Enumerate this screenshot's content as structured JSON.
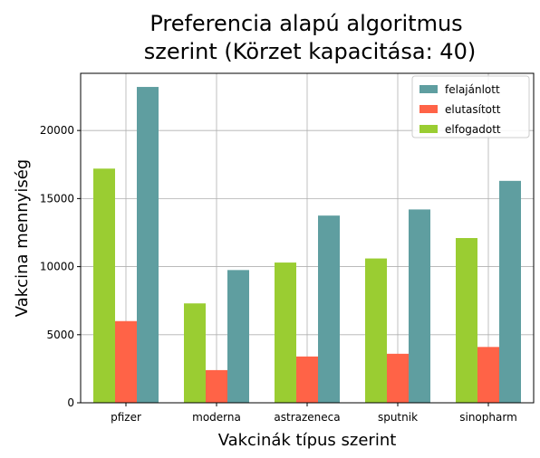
{
  "chart_data": {
    "type": "bar",
    "title_lines": [
      "Preferencia alapú algoritmus",
      "szerint (Körzet kapacitása: 40)"
    ],
    "xlabel": "Vakcinák típus szerint",
    "ylabel": "Vakcina mennyiség",
    "categories": [
      "pfizer",
      "moderna",
      "astrazeneca",
      "sputnik",
      "sinopharm"
    ],
    "ylim": [
      0,
      24200
    ],
    "yticks": [
      0,
      5000,
      10000,
      15000,
      20000
    ],
    "grid": true,
    "legend_position": "upper right",
    "series": [
      {
        "name": "elfogadott",
        "color": "#9acd32",
        "values": [
          17200,
          7300,
          10300,
          10600,
          12100
        ]
      },
      {
        "name": "elutasított",
        "color": "#ff6347",
        "values": [
          6000,
          2400,
          3400,
          3600,
          4100
        ]
      },
      {
        "name": "felajánlott",
        "color": "#5f9ea0",
        "values": [
          23200,
          9750,
          13750,
          14200,
          16300
        ]
      }
    ],
    "legend_order": [
      "felajánlott",
      "elutasított",
      "elfogadott"
    ]
  }
}
